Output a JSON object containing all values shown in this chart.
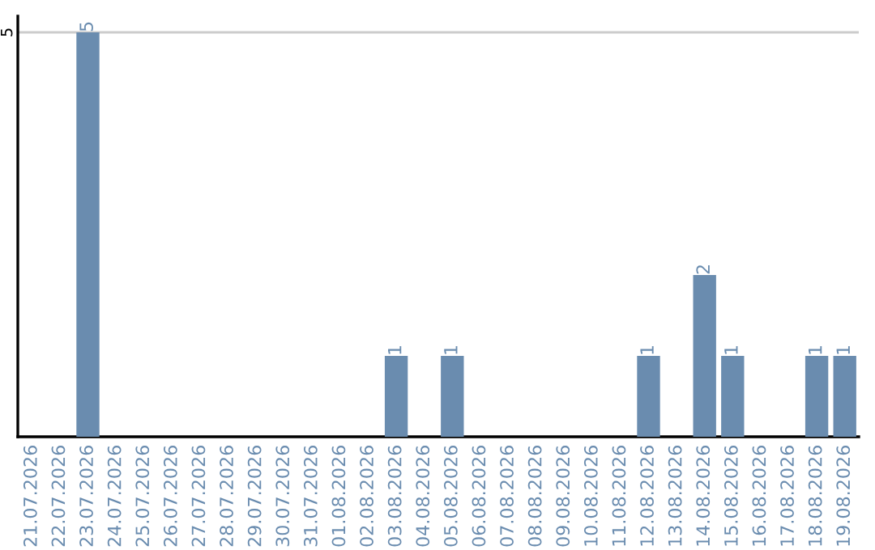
{
  "chart_data": {
    "type": "bar",
    "categories": [
      "21.07.2026",
      "22.07.2026",
      "23.07.2026",
      "24.07.2026",
      "25.07.2026",
      "26.07.2026",
      "27.07.2026",
      "28.07.2026",
      "29.07.2026",
      "30.07.2026",
      "31.07.2026",
      "01.08.2026",
      "02.08.2026",
      "03.08.2026",
      "04.08.2026",
      "05.08.2026",
      "06.08.2026",
      "07.08.2026",
      "08.08.2026",
      "09.08.2026",
      "10.08.2026",
      "11.08.2026",
      "12.08.2026",
      "13.08.2026",
      "14.08.2026",
      "15.08.2026",
      "16.08.2026",
      "17.08.2026",
      "18.08.2026",
      "19.08.2026"
    ],
    "values": [
      0,
      0,
      5,
      0,
      0,
      0,
      0,
      0,
      0,
      0,
      0,
      0,
      0,
      1,
      0,
      1,
      0,
      0,
      0,
      0,
      0,
      0,
      1,
      0,
      2,
      1,
      0,
      0,
      1,
      1
    ],
    "value_labels": [
      null,
      null,
      "5",
      null,
      null,
      null,
      null,
      null,
      null,
      null,
      null,
      null,
      null,
      "1",
      null,
      "1",
      null,
      null,
      null,
      null,
      null,
      null,
      "1",
      null,
      "2",
      "1",
      null,
      null,
      "1",
      "1"
    ],
    "color": "#6a8caf",
    "ylim": [
      0,
      5.2
    ],
    "yticks": [
      5
    ],
    "grid": "y"
  }
}
